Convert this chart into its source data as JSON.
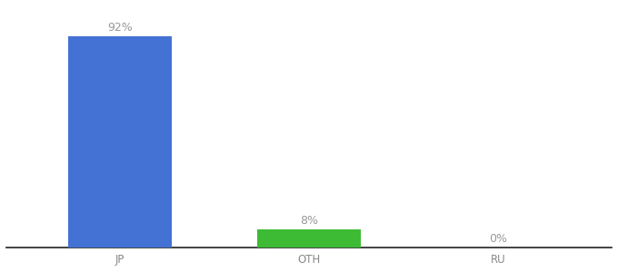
{
  "categories": [
    "JP",
    "OTH",
    "RU"
  ],
  "values": [
    92,
    8,
    0
  ],
  "bar_colors": [
    "#4472d4",
    "#3dbb35",
    "#4472d4"
  ],
  "labels": [
    "92%",
    "8%",
    "0%"
  ],
  "title": "",
  "label_fontsize": 9,
  "tick_fontsize": 8.5,
  "label_color": "#999999",
  "tick_color": "#888888",
  "ylim": [
    0,
    105
  ],
  "bar_width": 0.55,
  "background_color": "#ffffff"
}
